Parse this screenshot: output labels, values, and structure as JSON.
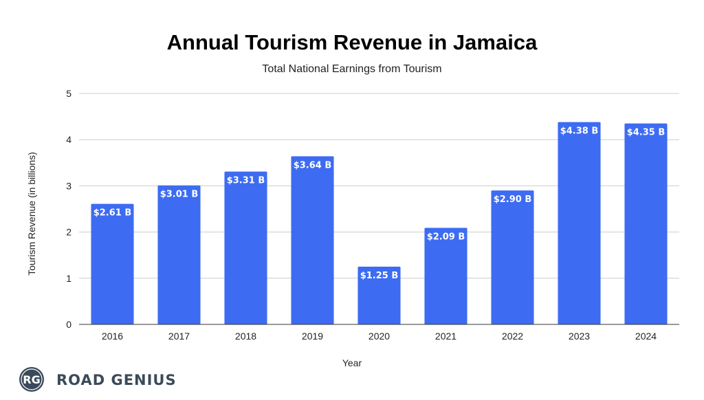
{
  "chart_data": {
    "type": "bar",
    "title": "Annual Tourism Revenue in Jamaica",
    "subtitle": "Total National Earnings from Tourism",
    "xlabel": "Year",
    "ylabel": "Tourism Revenue (in billions)",
    "categories": [
      "2016",
      "2017",
      "2018",
      "2019",
      "2020",
      "2021",
      "2022",
      "2023",
      "2024"
    ],
    "values": [
      2.61,
      3.01,
      3.31,
      3.64,
      1.25,
      2.09,
      2.9,
      4.38,
      4.35
    ],
    "data_labels": [
      "$2.61 B",
      "$3.01 B",
      "$3.31 B",
      "$3.64 B",
      "$1.25 B",
      "$2.09 B",
      "$2.90 B",
      "$4.38 B",
      "$4.35 B"
    ],
    "ylim": [
      0,
      5
    ],
    "yticks": [
      "0",
      "1",
      "2",
      "3",
      "4",
      "5"
    ],
    "grid": true,
    "legend": "none",
    "bar_color": "#3d6cf2"
  },
  "branding": {
    "monogram": "RG",
    "name": "ROAD GENIUS",
    "color": "#3b4a5a"
  }
}
